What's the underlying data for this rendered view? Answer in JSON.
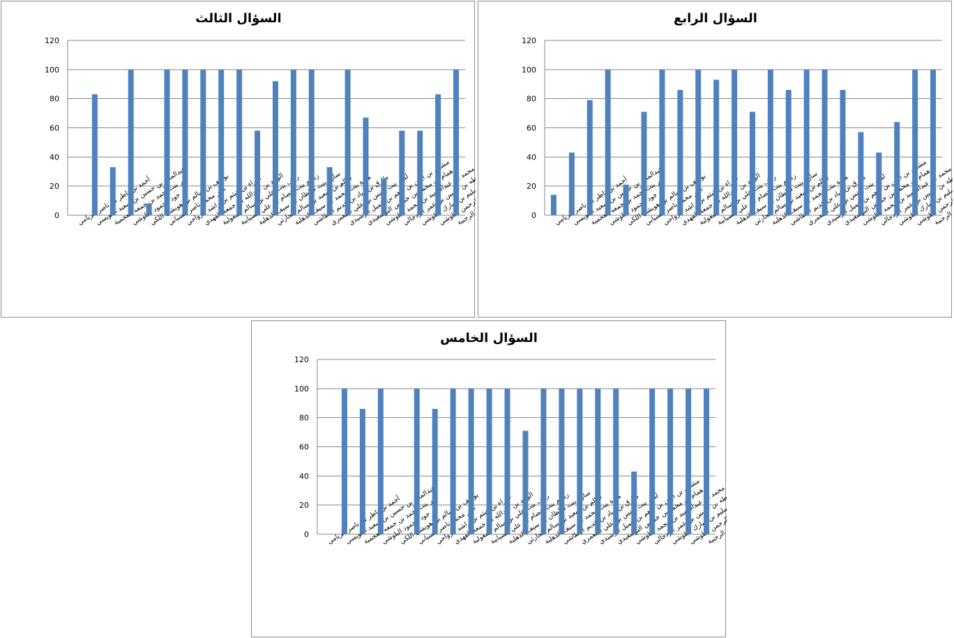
{
  "colors": {
    "bar": "#4F81BD",
    "grid": "#868686",
    "border": "#8a8a8a"
  },
  "chart_data": [
    {
      "type": "bar",
      "title": "السؤال الثالث",
      "xlabel": "",
      "ylabel": "",
      "ylim": [
        0,
        120
      ],
      "yticks": [
        0,
        20,
        40,
        60,
        80,
        100,
        120
      ],
      "grid": true,
      "categories": [
        "أحمد بن ناظر بن ناصر الريامي",
        "عبدالملك بن حسين بن سعيد العويسي",
        "نور بنت أحمد بن جمعه العجمية",
        "جود محمود البلوشي",
        "يوسف بن سالم بن هويشل اللكي",
        "عمر محمد ناصر السيابي",
        "البراء بن هيثم بن راشد الرواحي",
        "الوليد بن عبدالله بن جمعه الفهدي",
        "رهف بنت علي بن سالم المعولية",
        "زمزم بنت عصام بن علي السيابية",
        "سارة بنت سلطان بن سيف الذهلية",
        "سالم بن سعيد بن سالم الحارثي",
        "ميرة بنت محمد بن سيف الذهلية",
        "طارق بن زياد بن عديم البطاشي",
        "لمى بنت يونس بن علي المعمري",
        "مشعل بن أيمن بن ادهم بن جميل الرشيدي",
        "همام بن محمد بن خميس البوسعيدي",
        "محمد بن عبدالحميد بن محمد البلوشي",
        "طه بن حسين بن عمر الزدجالي",
        "استبرق بنت سليم بن مبارك البلوشي",
        "ريم قيس يوسف عبدالرحمن البلوشي",
        "مريم بنت يوسف بن سعيد الرحبية"
      ],
      "values": [
        0,
        83,
        33,
        100,
        8,
        100,
        100,
        100,
        100,
        100,
        58,
        92,
        100,
        100,
        33,
        100,
        67,
        25,
        58,
        58,
        83,
        100
      ]
    },
    {
      "type": "bar",
      "title": "السؤال الرابع",
      "xlabel": "",
      "ylabel": "",
      "ylim": [
        0,
        120
      ],
      "yticks": [
        0,
        20,
        40,
        60,
        80,
        100,
        120
      ],
      "grid": true,
      "categories": [
        "أحمد بن ناظر بن ناصر الريامي",
        "عبدالملك بن حسين بن سعيد العويسي",
        "نور بنت أحمد بن جمعه العجمية",
        "جود محمود البلوشي",
        "يوسف بن سالم بن هويشل اللكي",
        "عمر محمد ناصر السيابي",
        "البراء بن هيثم بن راشد الرواحي",
        "الوليد بن عبدالله بن جمعه الفهدي",
        "رهف بنت علي بن سالم المعولية",
        "زمزم بنت عصام بن علي السيابية",
        "سارة بنت سلطان بن سيف الذهلية",
        "سالم بن سعيد بن سالم الحارثي",
        "ميرة بنت محمد بن سيف الذهلية",
        "طارق بن زياد بن عديم البطاشي",
        "لمى بنت يونس بن علي المعمري",
        "مشعل بن أيمن بن ادهم بن جميل الرشيدي",
        "همام بن محمد بن خميس البوسعيدي",
        "محمد بن عبدالحميد بن محمد البلوشي",
        "طه بن حسين بن عمر الزدجالي",
        "استبرق بنت سليم بن مبارك البلوشي",
        "ريم قيس يوسف عبدالرحمن البلوشي",
        "مريم بنت يوسف بن سعيد الرحبية"
      ],
      "values": [
        14,
        43,
        79,
        100,
        21,
        71,
        100,
        86,
        100,
        93,
        100,
        71,
        100,
        86,
        100,
        100,
        86,
        57,
        43,
        64,
        100,
        100
      ]
    },
    {
      "type": "bar",
      "title": "السؤال الخامس",
      "xlabel": "",
      "ylabel": "",
      "ylim": [
        0,
        120
      ],
      "yticks": [
        0,
        20,
        40,
        60,
        80,
        100,
        120
      ],
      "grid": true,
      "categories": [
        "أحمد بن ناظر بن ناصر الريامي",
        "عبدالملك بن حسين بن سعيد العويسي",
        "نور بنت أحمد بن جمعه العجمية",
        "جود محمود البلوشي",
        "يوسف بن سالم بن هويشل اللكي",
        "عمر محمد ناصر السيابي",
        "البراء بن هيثم بن راشد الرواحي",
        "الوليد بن عبدالله بن جمعه الفهدي",
        "رهف بنت علي بن سالم المعولية",
        "زمزم بنت عصام بن علي السيابية",
        "سارة بنت سلطان بن سيف الذهلية",
        "سالم بن سعيد بن سالم الحارثي",
        "ميرة بنت محمد بن سيف الذهلية",
        "طارق بن زياد بن عديم البطاشي",
        "لمى بنت يونس بن علي المعمري",
        "مشعل بن أيمن بن ادهم بن جميل الرشيدي",
        "همام بن محمد بن خميس البوسعيدي",
        "محمد بن عبدالحميد بن محمد البلوشي",
        "طه بن حسين بن عمر الزدجالي",
        "استبرق بنت سليم بن مبارك البلوشي",
        "ريم قيس يوسف عبدالرحمن البلوشي",
        "مريم بنت يوسف بن سعيد الرحبية"
      ],
      "values": [
        0,
        100,
        86,
        100,
        0,
        100,
        86,
        100,
        100,
        100,
        100,
        71,
        100,
        100,
        100,
        100,
        100,
        43,
        100,
        100,
        100,
        100
      ]
    }
  ]
}
